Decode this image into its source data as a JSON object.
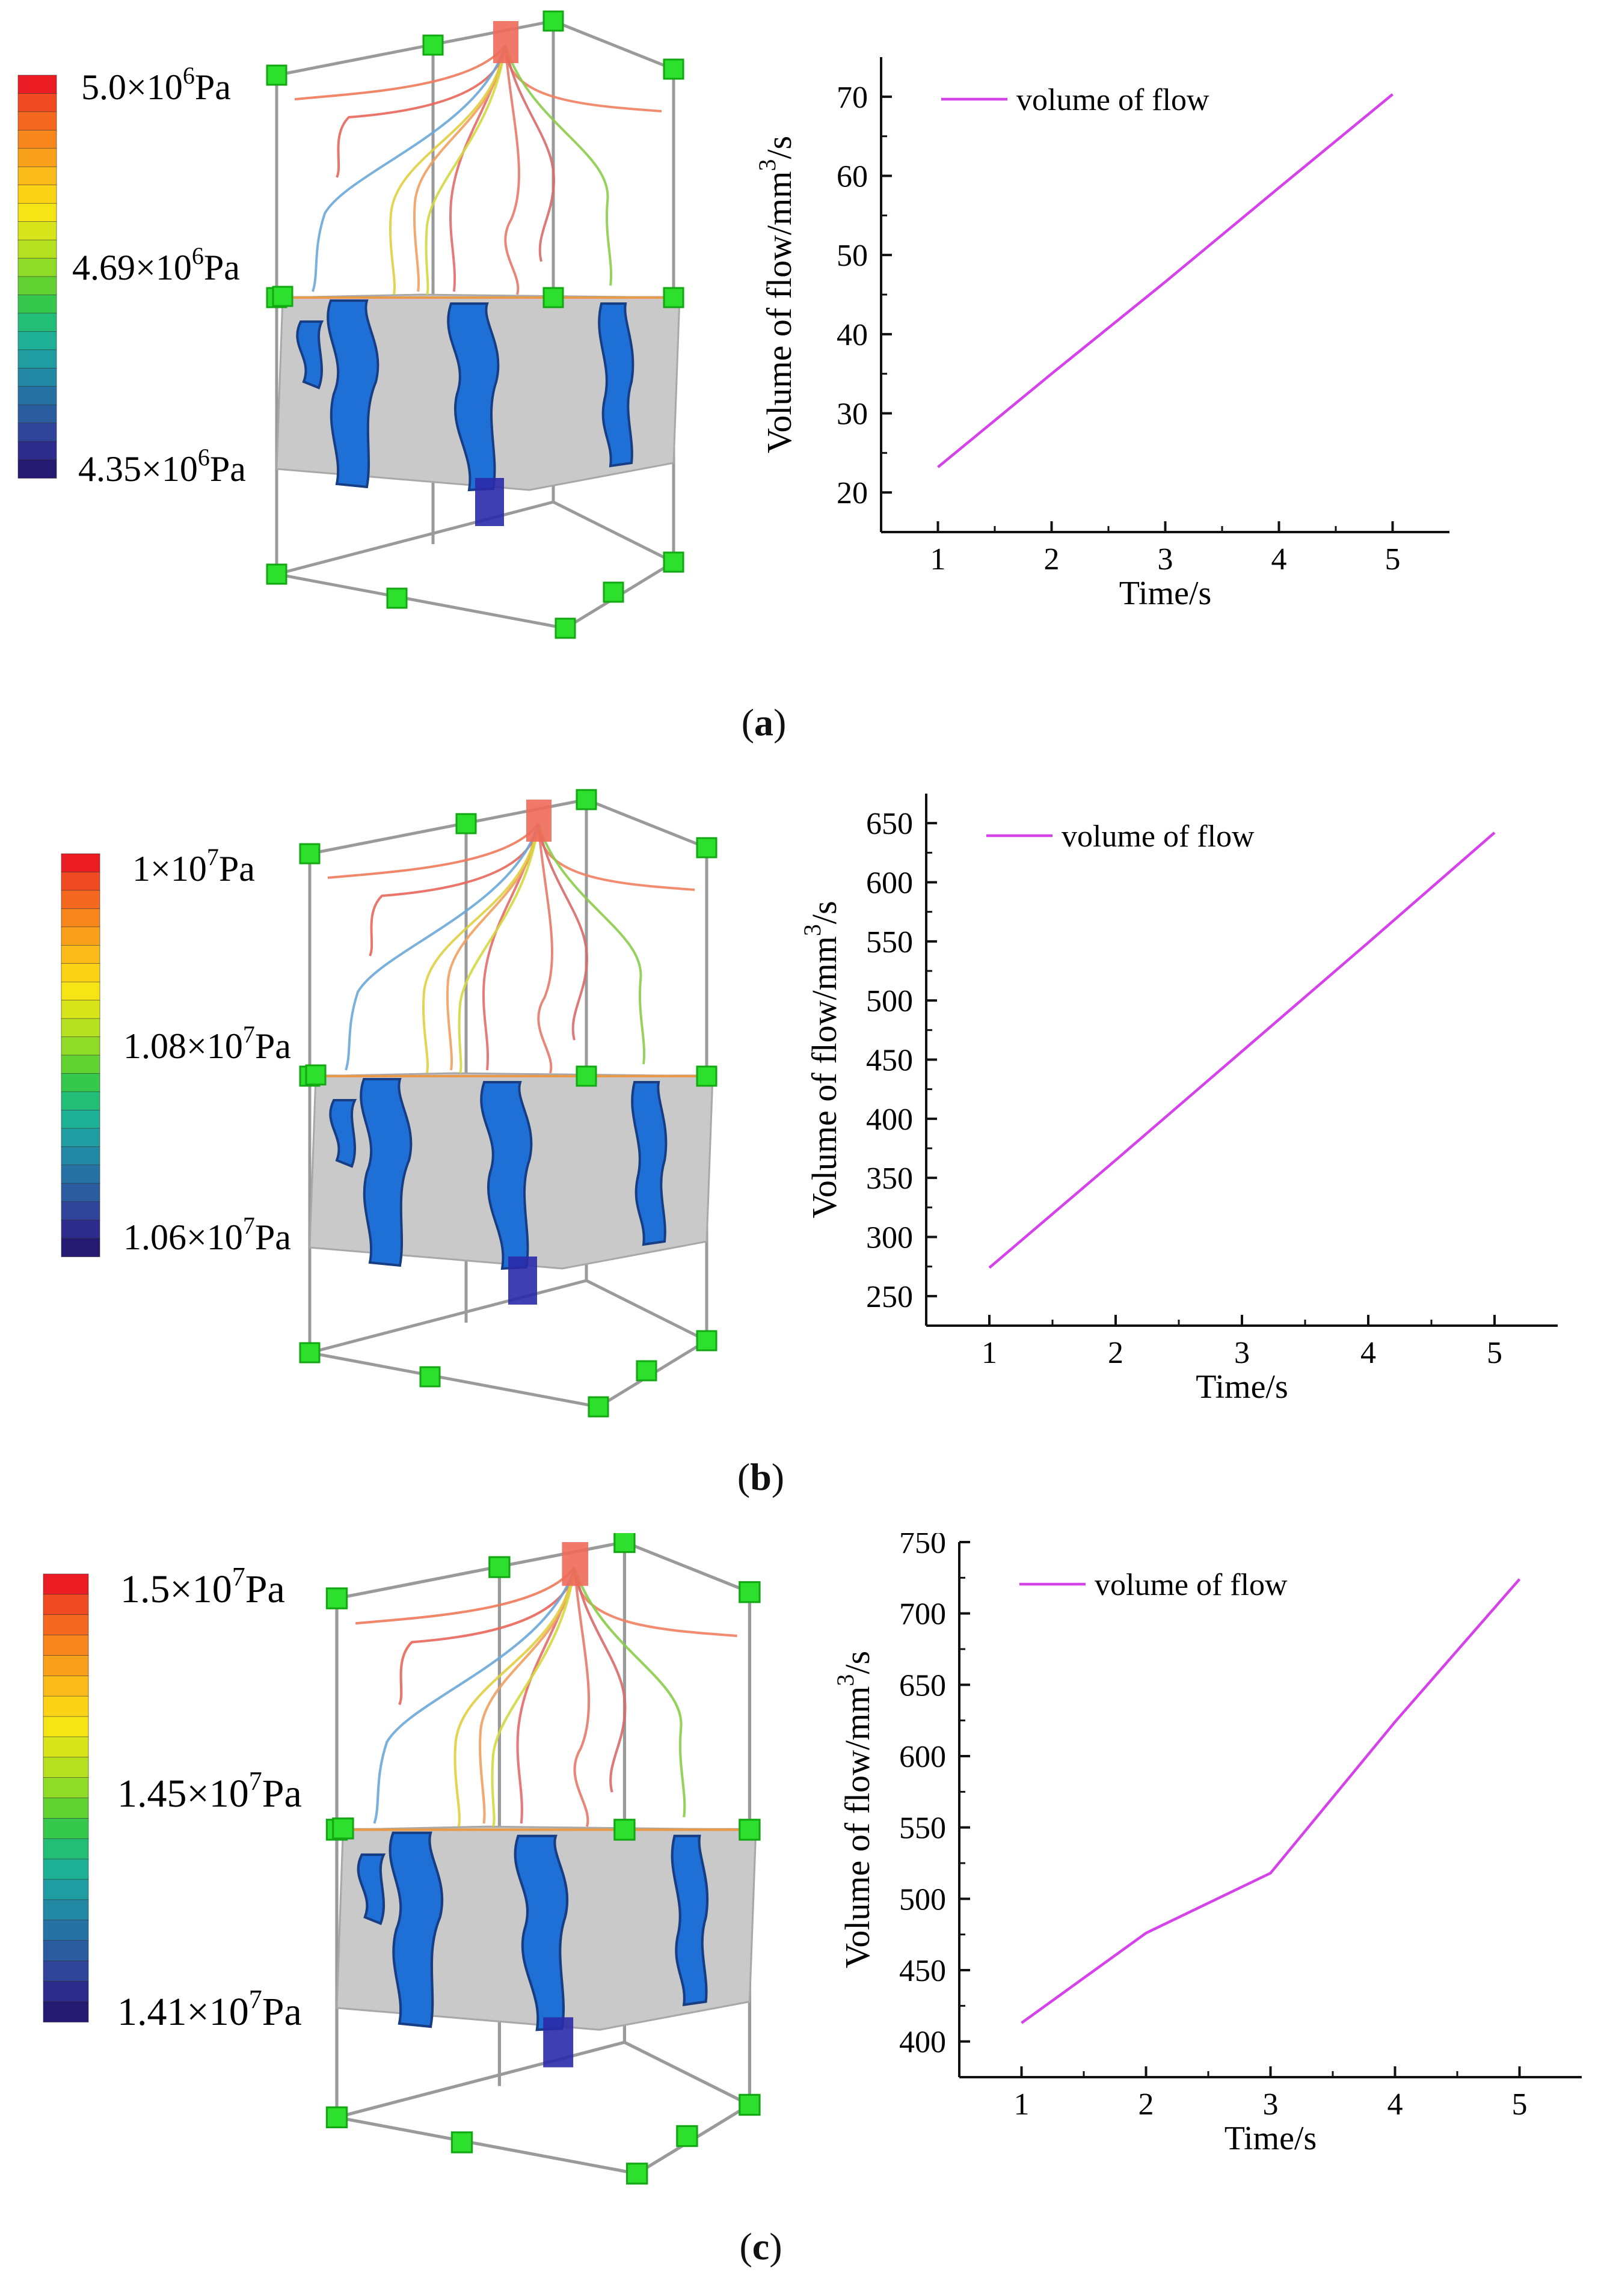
{
  "colors": {
    "colorbar": [
      "#ec1c24",
      "#f04a22",
      "#f4691f",
      "#f7861c",
      "#f9a11a",
      "#fbbb18",
      "#fdd415",
      "#f6e415",
      "#d8e51a",
      "#b5e121",
      "#8fdb28",
      "#62d232",
      "#36c84c",
      "#22bd76",
      "#1eb095",
      "#1f9da0",
      "#2288a4",
      "#2772a4",
      "#2c5ca0",
      "#30449a",
      "#2d2c8c",
      "#251a72"
    ],
    "line": "#d542ea",
    "frame": "#9a9a9a",
    "node": "#2de02d",
    "pore": "#1e6fd6",
    "rock": "#c9c9c9"
  },
  "panels": [
    {
      "label": "a",
      "colorbar": {
        "top": "5.0×10^6Pa",
        "mid": "4.69×10^6Pa",
        "bottom": "4.35×10^6Pa",
        "top_base": "5.0×10",
        "top_exp": "6",
        "mid_base": "4.69×10",
        "mid_exp": "6",
        "bottom_base": "4.35×10",
        "bottom_exp": "6",
        "unit": "Pa"
      }
    },
    {
      "label": "b",
      "colorbar": {
        "top": "1×10^7Pa",
        "mid": "1.08×10^7Pa",
        "bottom": "1.06×10^7Pa",
        "top_base": "1×10",
        "top_exp": "7",
        "mid_base": "1.08×10",
        "mid_exp": "7",
        "bottom_base": "1.06×10",
        "bottom_exp": "7",
        "unit": "Pa"
      }
    },
    {
      "label": "c",
      "colorbar": {
        "top": "1.5×10^7Pa",
        "mid": "1.45×10^7Pa",
        "bottom": "1.41×10^7Pa",
        "top_base": "1.5×10",
        "top_exp": "7",
        "mid_base": "1.45×10",
        "mid_exp": "7",
        "bottom_base": "1.41×10",
        "bottom_exp": "7",
        "unit": "Pa"
      }
    }
  ],
  "chart_data": [
    {
      "type": "line",
      "title": "",
      "xlabel": "Time/s",
      "ylabel_base": "Volume of flow/mm",
      "ylabel_exp": "3",
      "ylabel_tail": "/s",
      "legend": "volume of flow",
      "legend_position": "top-left",
      "x": [
        1,
        2,
        3,
        4,
        5
      ],
      "series": [
        {
          "name": "volume of flow",
          "values": [
            23.2,
            35,
            46.6,
            58.5,
            70.3
          ]
        }
      ],
      "xlim": [
        0.5,
        5.5
      ],
      "ylim": [
        15,
        75
      ],
      "xticks": [
        1,
        2,
        3,
        4,
        5
      ],
      "yticks": [
        20,
        30,
        40,
        50,
        60,
        70
      ]
    },
    {
      "type": "line",
      "title": "",
      "xlabel": "Time/s",
      "ylabel_base": "Volume of flow/mm",
      "ylabel_exp": "3",
      "ylabel_tail": "/s",
      "legend": "volume of flow",
      "legend_position": "top-left",
      "x": [
        1,
        2,
        3,
        4,
        5
      ],
      "series": [
        {
          "name": "volume of flow",
          "values": [
            274,
            365,
            457,
            549,
            642
          ]
        }
      ],
      "xlim": [
        0.5,
        5.5
      ],
      "ylim": [
        225,
        675
      ],
      "xticks": [
        1,
        2,
        3,
        4,
        5
      ],
      "yticks": [
        250,
        300,
        350,
        400,
        450,
        500,
        550,
        600,
        650
      ]
    },
    {
      "type": "line",
      "title": "",
      "xlabel": "Time/s",
      "ylabel_base": "Volume of flow/mm",
      "ylabel_exp": "3",
      "ylabel_tail": "/s",
      "legend": "volume of flow",
      "legend_position": "top-left",
      "x": [
        1,
        2,
        3,
        4,
        5
      ],
      "series": [
        {
          "name": "volume of flow",
          "values": [
            413,
            476,
            518,
            624,
            724
          ]
        }
      ],
      "xlim": [
        0.5,
        5.5
      ],
      "ylim": [
        375,
        750
      ],
      "xticks": [
        1,
        2,
        3,
        4,
        5
      ],
      "yticks": [
        400,
        450,
        500,
        550,
        600,
        650,
        700,
        750
      ]
    }
  ]
}
